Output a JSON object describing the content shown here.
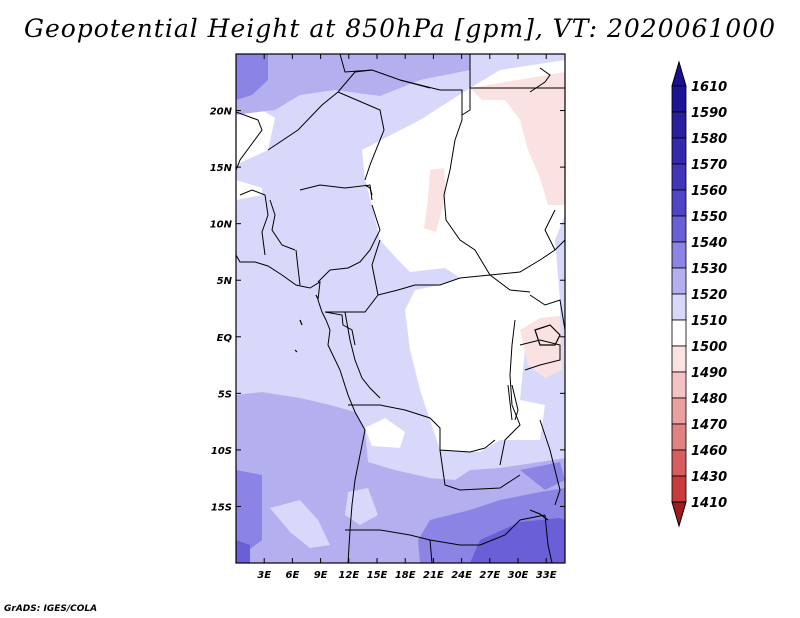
{
  "title": "Geopotential Height at 850hPa [gpm], VT: 2020061000",
  "footer": "GrADS: IGES/COLA",
  "map": {
    "lon_range": [
      0,
      35
    ],
    "lat_range": [
      -20,
      25
    ],
    "lon_ticks": [
      {
        "value": 3,
        "label": "3E"
      },
      {
        "value": 6,
        "label": "6E"
      },
      {
        "value": 9,
        "label": "9E"
      },
      {
        "value": 12,
        "label": "12E"
      },
      {
        "value": 15,
        "label": "15E"
      },
      {
        "value": 18,
        "label": "18E"
      },
      {
        "value": 21,
        "label": "21E"
      },
      {
        "value": 24,
        "label": "24E"
      },
      {
        "value": 27,
        "label": "27E"
      },
      {
        "value": 30,
        "label": "30E"
      },
      {
        "value": 33,
        "label": "33E"
      }
    ],
    "lat_ticks": [
      {
        "value": 20,
        "label": "20N"
      },
      {
        "value": 15,
        "label": "15N"
      },
      {
        "value": 10,
        "label": "10N"
      },
      {
        "value": 5,
        "label": "5N"
      },
      {
        "value": 0,
        "label": "EQ"
      },
      {
        "value": -5,
        "label": "5S"
      },
      {
        "value": -10,
        "label": "10S"
      },
      {
        "value": -15,
        "label": "15S"
      }
    ]
  },
  "colorbar": {
    "levels": [
      {
        "label": "1610",
        "color": "#1e1496"
      },
      {
        "label": "1590",
        "color": "#2a209e"
      },
      {
        "label": "1580",
        "color": "#3628ac"
      },
      {
        "label": "1570",
        "color": "#4235b8"
      },
      {
        "label": "1560",
        "color": "#5045c8"
      },
      {
        "label": "1550",
        "color": "#6a5fd6"
      },
      {
        "label": "1540",
        "color": "#8c84e4"
      },
      {
        "label": "1530",
        "color": "#b4b0f0"
      },
      {
        "label": "1520",
        "color": "#d8d8fa"
      },
      {
        "label": "1510",
        "color": "#ffffff"
      },
      {
        "label": "1500",
        "color": "#fae2e2"
      },
      {
        "label": "1490",
        "color": "#f4c2c2"
      },
      {
        "label": "1480",
        "color": "#eba0a0"
      },
      {
        "label": "1470",
        "color": "#e08282"
      },
      {
        "label": "1460",
        "color": "#d65e5e"
      },
      {
        "label": "1430",
        "color": "#c83c3c"
      },
      {
        "label": "1410",
        "color": "#b42828"
      }
    ],
    "top_color": "#1a1090",
    "bottom_color": "#a01c1c"
  }
}
